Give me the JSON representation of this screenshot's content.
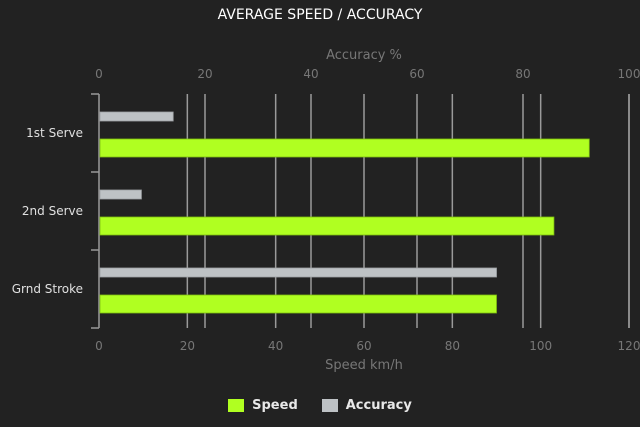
{
  "chart_data": {
    "type": "bar",
    "orientation": "horizontal",
    "title": "AVERAGE SPEED / ACCURACY",
    "categories": [
      "1st Serve",
      "2nd Serve",
      "Grnd Stroke"
    ],
    "series": [
      {
        "name": "Speed",
        "axis": "bottom",
        "color": "#b0ff21",
        "values": [
          111,
          103,
          90
        ]
      },
      {
        "name": "Accuracy",
        "axis": "top",
        "color": "#bec2c5",
        "values": [
          14,
          8,
          75
        ]
      }
    ],
    "xaxis_bottom": {
      "label": "Speed km/h",
      "range": [
        0,
        120
      ],
      "ticks": [
        "0",
        "20",
        "40",
        "60",
        "80",
        "100",
        "120"
      ]
    },
    "xaxis_top": {
      "label": "Accuracy %",
      "range": [
        0,
        100
      ],
      "ticks": [
        "0",
        "20",
        "40",
        "60",
        "80",
        "100"
      ]
    },
    "grid": true,
    "legend": "bottom"
  }
}
